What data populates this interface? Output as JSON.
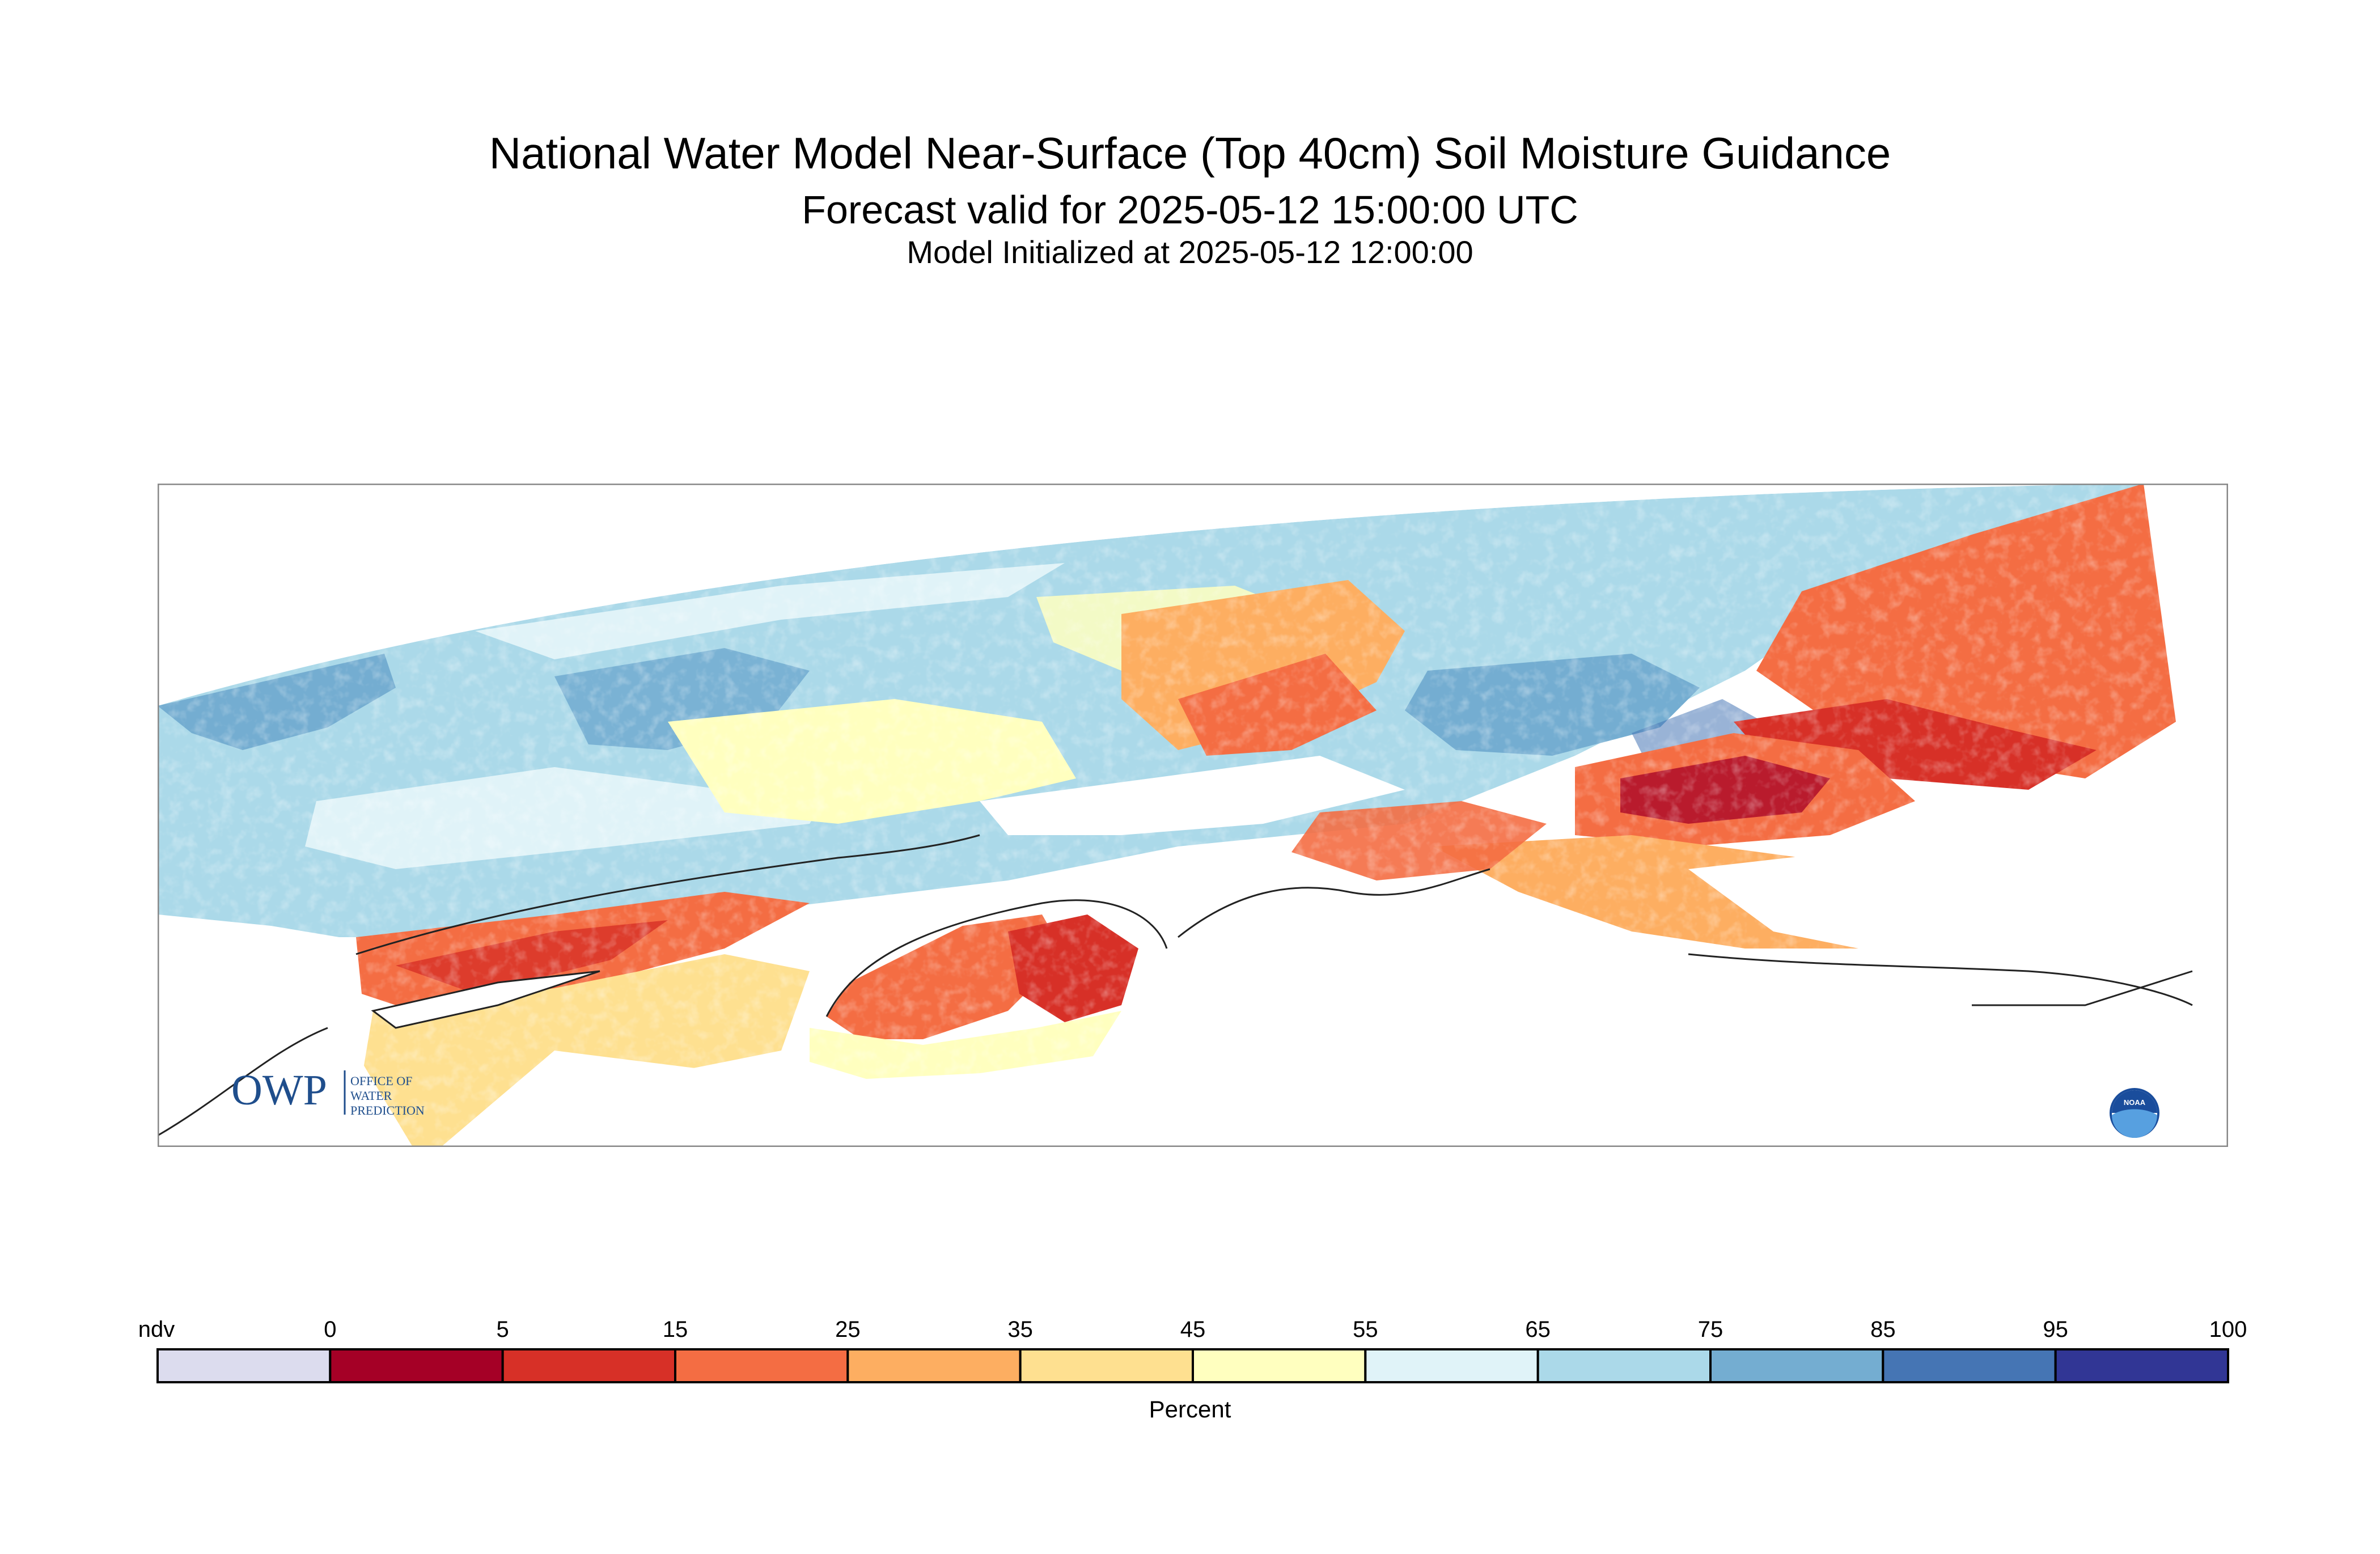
{
  "title": "National Water Model Near-Surface (Top 40cm) Soil Moisture Guidance",
  "subtitle": "Forecast valid for 2025-05-12 15:00:00 UTC",
  "init_line": "Model Initialized at 2025-05-12 12:00:00",
  "logos": {
    "owp_mark": "OWP",
    "owp_text": [
      "OFFICE OF",
      "WATER",
      "PREDICTION"
    ],
    "noaa_text": "NOAA"
  },
  "legend": {
    "unit_label": "Percent",
    "tick_labels": [
      "ndv",
      "0",
      "5",
      "15",
      "25",
      "35",
      "45",
      "55",
      "65",
      "75",
      "85",
      "95",
      "100"
    ],
    "colors": [
      "#dcdcee",
      "#a50026",
      "#d73027",
      "#f46d43",
      "#fdae61",
      "#fee090",
      "#ffffbf",
      "#e0f3f8",
      "#abd9e9",
      "#74add1",
      "#4575b4",
      "#313695"
    ]
  },
  "map": {
    "region_colors": {
      "very_dry": "#a50026",
      "dry": "#d73027",
      "moderately_dry": "#f46d43",
      "slightly_dry": "#fdae61",
      "near_normal_dry": "#fee090",
      "near_normal": "#ffffbf",
      "near_normal_wet": "#e0f3f8",
      "wet": "#abd9e9",
      "very_wet": "#74add1",
      "extremely_wet": "#4575b4",
      "no_data": "#ffffff",
      "coastline": "#222222"
    }
  }
}
